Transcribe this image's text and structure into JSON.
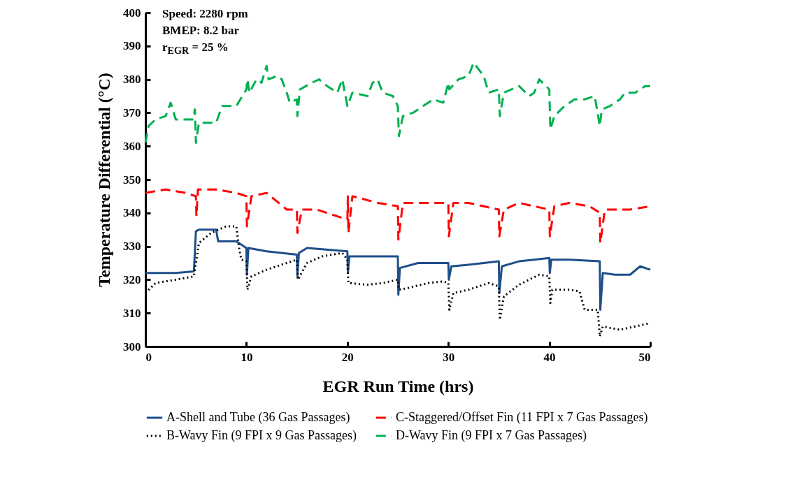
{
  "chart_data": {
    "type": "line",
    "xlabel": "EGR Run Time (hrs)",
    "ylabel": "Temperature Differential (°C)",
    "annotations": [
      "Speed: 2280 rpm",
      "BMEP: 8.2 bar",
      "r$_{EGR}$ = 25 %"
    ],
    "xlim": [
      0,
      50
    ],
    "xticks": [
      0,
      10,
      20,
      30,
      40,
      50
    ],
    "ylim": [
      300,
      400
    ],
    "yticks": [
      300,
      310,
      320,
      330,
      340,
      350,
      360,
      370,
      380,
      390,
      400
    ],
    "grid": false,
    "legend": "bottom",
    "marker": "none",
    "series": [
      {
        "name": "A-Shell and Tube (36 Gas Passages)",
        "color": "#1f4e89",
        "line_style": "solid",
        "x": [
          0,
          1,
          3,
          4.8,
          5,
          5.3,
          7,
          7.2,
          9,
          10,
          10.05,
          10.2,
          12,
          15,
          15.05,
          15.2,
          16,
          20,
          20.05,
          20.2,
          22,
          25,
          25.05,
          25.2,
          27,
          30,
          30.05,
          30.3,
          32,
          35,
          35.05,
          35.3,
          37,
          40,
          40.05,
          40.2,
          42,
          45,
          45.05,
          45.3,
          46.5,
          48,
          49,
          50
        ],
        "values": [
          322,
          322,
          322,
          322.5,
          334.5,
          335,
          335,
          331.5,
          331.5,
          329.5,
          321.5,
          329.5,
          328.5,
          327.5,
          321,
          328,
          329.5,
          328.5,
          322,
          327,
          327,
          327,
          315.5,
          323.5,
          325,
          325,
          320,
          324,
          324.5,
          325.5,
          316,
          324,
          325.5,
          326.5,
          322,
          326,
          326,
          325.5,
          311,
          322,
          321.5,
          321.5,
          324,
          323
        ]
      },
      {
        "name": "C-Staggered/Offset Fin (11 FPI x 7 Gas Passages)",
        "color": "#ff0000",
        "line_style": "dashed",
        "x": [
          0,
          2,
          4,
          5,
          5.05,
          5.2,
          7,
          9,
          10,
          10.05,
          10.5,
          12,
          14,
          15,
          15.05,
          15.5,
          17,
          19,
          20,
          20.05,
          20.1,
          20.5,
          23,
          25,
          25.05,
          25.5,
          28,
          30,
          30.05,
          30.5,
          32,
          35,
          35.05,
          35.5,
          37,
          40,
          40.05,
          40.5,
          42,
          44,
          45,
          45.05,
          45.5,
          48,
          50
        ],
        "values": [
          346,
          347,
          346,
          345,
          339,
          347,
          347,
          346,
          345,
          336,
          345,
          346,
          341,
          341,
          334,
          341,
          341,
          339,
          338,
          345,
          334,
          345,
          343,
          342,
          332,
          343,
          343,
          343,
          333,
          343,
          343,
          341,
          333,
          341,
          343,
          341,
          333,
          342,
          343,
          342,
          340,
          331,
          341,
          341,
          342
        ]
      },
      {
        "name": "B-Wavy Fin (9 FPI x 9 Gas Passages)",
        "color": "#000000",
        "line_style": "dotted",
        "x": [
          0,
          1,
          3,
          4.8,
          5.3,
          6.5,
          8,
          9,
          9.3,
          9.5,
          10,
          10.1,
          10.5,
          12,
          14,
          15,
          15.1,
          16,
          17.5,
          19.5,
          20,
          20.1,
          22,
          23.5,
          25,
          25.1,
          26,
          28,
          29.5,
          30,
          30.1,
          30.5,
          32,
          34,
          35,
          35.1,
          35.5,
          37,
          39,
          40,
          40.1,
          40.3,
          42,
          43,
          43.5,
          44.8,
          45,
          45.3,
          47,
          48.5,
          50
        ],
        "values": [
          316,
          319,
          320,
          321,
          331,
          334,
          336,
          336,
          329,
          326,
          325.5,
          317,
          321,
          323,
          325,
          326,
          320,
          325,
          327,
          328,
          326,
          319,
          318.5,
          319,
          320,
          317,
          317.5,
          319,
          319.5,
          319,
          311,
          316,
          317,
          319,
          318,
          308,
          315,
          318.5,
          321.5,
          321,
          313,
          317,
          317,
          316.5,
          311,
          311,
          303,
          306,
          305,
          306,
          307
        ]
      },
      {
        "name": "D-Wavy Fin (9 FPI x 7 Gas Passages)",
        "color": "#00b050",
        "line_style": "dashed",
        "x": [
          0,
          0.3,
          1,
          2,
          2.5,
          3,
          4.7,
          4.9,
          5,
          5.3,
          7,
          7.6,
          9,
          9.8,
          10,
          10.1,
          10.3,
          11,
          11.5,
          12,
          12.2,
          13,
          13.5,
          14,
          14.3,
          15,
          15.05,
          15.3,
          16.5,
          17.2,
          18,
          19,
          19.5,
          20,
          20.5,
          22,
          22.5,
          23,
          23.5,
          24.5,
          25,
          25.1,
          25.5,
          26.5,
          27.5,
          28.5,
          29.5,
          30,
          30.1,
          31,
          32,
          32.5,
          33,
          33.5,
          34,
          35,
          35.1,
          35.5,
          37,
          38,
          38.5,
          39,
          40,
          40.1,
          40.5,
          41.5,
          42.5,
          43.5,
          44.5,
          45,
          45.2,
          46,
          47,
          47.5,
          48.5,
          49.5,
          50
        ],
        "values": [
          361,
          366,
          368,
          369,
          373,
          368,
          368,
          371,
          361,
          367,
          367,
          372,
          372,
          376,
          377,
          380,
          376,
          380,
          379,
          384,
          380,
          381,
          380,
          376,
          373,
          374,
          369,
          377,
          379,
          380,
          378,
          376,
          380,
          372,
          376,
          375,
          379,
          380,
          376,
          375,
          372,
          363,
          369,
          370,
          372,
          374,
          373,
          379,
          377,
          380,
          381,
          385,
          383,
          381,
          376,
          377,
          369,
          376,
          378,
          375,
          376,
          380,
          377,
          365,
          369,
          372,
          374,
          374,
          375,
          366,
          371,
          372,
          374,
          376,
          376,
          378,
          378
        ]
      }
    ]
  }
}
